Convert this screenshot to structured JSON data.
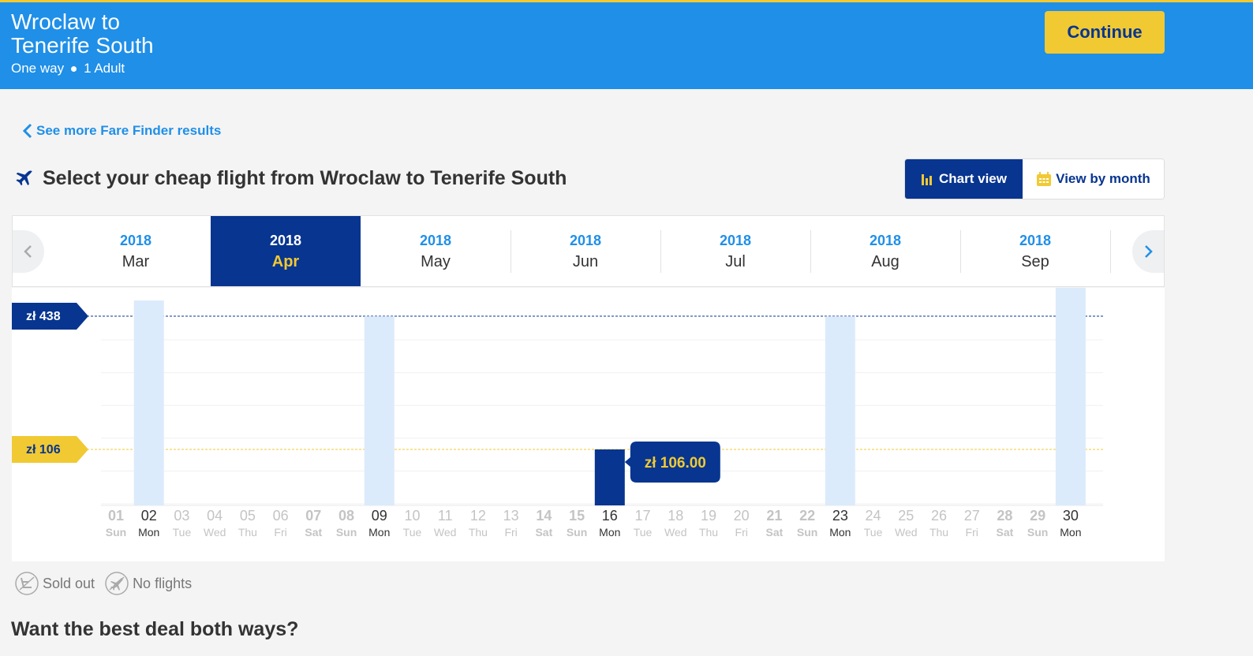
{
  "header": {
    "route_line1": "Wroclaw to",
    "route_line2": "Tenerife South",
    "trip_type": "One way",
    "passengers": "1 Adult",
    "continue_label": "Continue"
  },
  "back_link": "See more Fare Finder results",
  "page_title": "Select your cheap flight from Wroclaw to Tenerife South",
  "view_toggle": {
    "chart_view": "Chart view",
    "month_view": "View by month"
  },
  "months": [
    {
      "year": "2018",
      "month": "Mar",
      "selected": false
    },
    {
      "year": "2018",
      "month": "Apr",
      "selected": true
    },
    {
      "year": "2018",
      "month": "May",
      "selected": false
    },
    {
      "year": "2018",
      "month": "Jun",
      "selected": false
    },
    {
      "year": "2018",
      "month": "Jul",
      "selected": false
    },
    {
      "year": "2018",
      "month": "Aug",
      "selected": false
    },
    {
      "year": "2018",
      "month": "Sep",
      "selected": false
    }
  ],
  "chart_data": {
    "type": "bar",
    "max_label": "zł 438",
    "min_label": "zł 106",
    "max_value": 438,
    "min_value": 106,
    "selected_day": "16",
    "selected_price_label": "zł 106.00",
    "days": [
      {
        "day": "01",
        "dow": "Sun",
        "price": null
      },
      {
        "day": "02",
        "dow": "Mon",
        "price": 388
      },
      {
        "day": "03",
        "dow": "Tue",
        "price": null
      },
      {
        "day": "04",
        "dow": "Wed",
        "price": null
      },
      {
        "day": "05",
        "dow": "Thu",
        "price": null
      },
      {
        "day": "06",
        "dow": "Fri",
        "price": null
      },
      {
        "day": "07",
        "dow": "Sat",
        "price": null
      },
      {
        "day": "08",
        "dow": "Sun",
        "price": null
      },
      {
        "day": "09",
        "dow": "Mon",
        "price": 358
      },
      {
        "day": "10",
        "dow": "Tue",
        "price": null
      },
      {
        "day": "11",
        "dow": "Wed",
        "price": null
      },
      {
        "day": "12",
        "dow": "Thu",
        "price": null
      },
      {
        "day": "13",
        "dow": "Fri",
        "price": null
      },
      {
        "day": "14",
        "dow": "Sat",
        "price": null
      },
      {
        "day": "15",
        "dow": "Sun",
        "price": null
      },
      {
        "day": "16",
        "dow": "Mon",
        "price": 106
      },
      {
        "day": "17",
        "dow": "Tue",
        "price": null
      },
      {
        "day": "18",
        "dow": "Wed",
        "price": null
      },
      {
        "day": "19",
        "dow": "Thu",
        "price": null
      },
      {
        "day": "20",
        "dow": "Fri",
        "price": null
      },
      {
        "day": "21",
        "dow": "Sat",
        "price": null
      },
      {
        "day": "22",
        "dow": "Sun",
        "price": null
      },
      {
        "day": "23",
        "dow": "Mon",
        "price": 358
      },
      {
        "day": "24",
        "dow": "Tue",
        "price": null
      },
      {
        "day": "25",
        "dow": "Wed",
        "price": null
      },
      {
        "day": "26",
        "dow": "Thu",
        "price": null
      },
      {
        "day": "27",
        "dow": "Fri",
        "price": null
      },
      {
        "day": "28",
        "dow": "Sat",
        "price": null
      },
      {
        "day": "29",
        "dow": "Sun",
        "price": null
      },
      {
        "day": "30",
        "dow": "Mon",
        "price": 438
      }
    ]
  },
  "legend": {
    "sold_out": "Sold out",
    "no_flights": "No flights"
  },
  "bottom_title": "Want the best deal both ways?",
  "colors": {
    "primary": "#073590",
    "accent": "#f1c933",
    "header_blue": "#1f8fe8",
    "bar_light": "#dcebfb"
  }
}
